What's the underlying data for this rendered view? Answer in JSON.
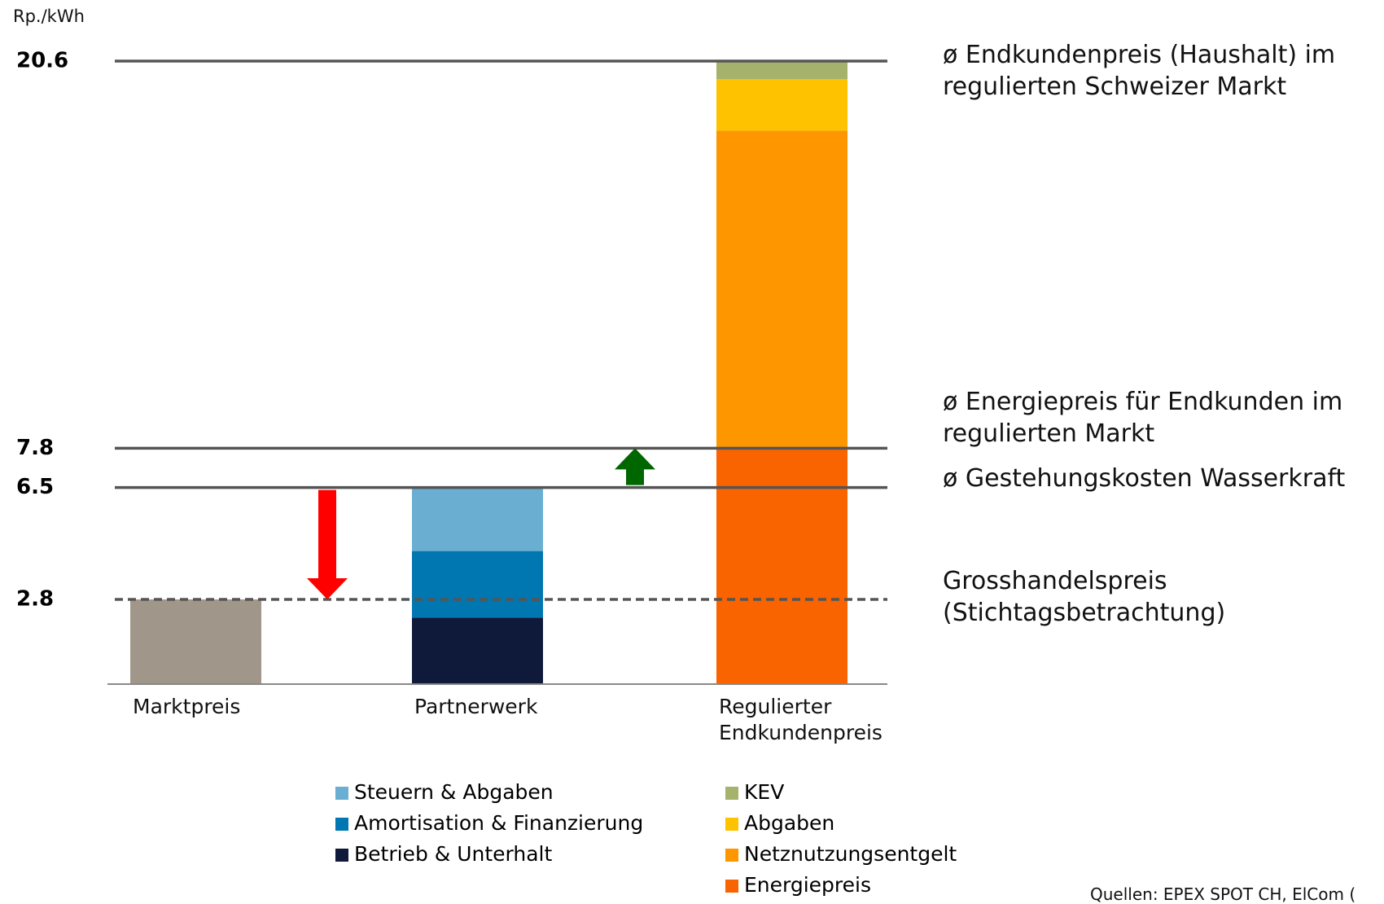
{
  "chart_data": {
    "type": "bar",
    "stacked": true,
    "unit_label": "Rp./kWh",
    "categories": [
      "Marktpreis",
      "Partnerwerk",
      "Regulierter Endkundenpreis"
    ],
    "series": [
      {
        "name": "Marktpreis",
        "color": "#a0968a",
        "values": [
          2.8,
          null,
          null
        ],
        "legend": false
      },
      {
        "name": "Betrieb & Unterhalt",
        "color": "#0f1a3a",
        "values": [
          null,
          2.2,
          null
        ]
      },
      {
        "name": "Amortisation & Finanzierung",
        "color": "#0077b0",
        "values": [
          null,
          2.2,
          null
        ]
      },
      {
        "name": "Steuern & Abgaben",
        "color": "#6aafd2",
        "values": [
          null,
          2.1,
          null
        ]
      },
      {
        "name": "Energiepreis",
        "color": "#f96300",
        "values": [
          null,
          null,
          7.8
        ]
      },
      {
        "name": "Netznutzungsentgelt",
        "color": "#fe9600",
        "values": [
          null,
          null,
          10.5
        ]
      },
      {
        "name": "Abgaben",
        "color": "#fec200",
        "values": [
          null,
          null,
          1.7
        ]
      },
      {
        "name": "KEV",
        "color": "#a5b26b",
        "values": [
          null,
          null,
          0.6
        ]
      }
    ],
    "ylim": [
      0,
      20.6
    ],
    "yticks": [
      2.8,
      6.5,
      7.8,
      20.6
    ],
    "reference_lines": [
      {
        "value": 20.6,
        "dashed": false,
        "label": "ø Endkundenpreis (Haushalt) im regulierten Schweizer Markt"
      },
      {
        "value": 7.8,
        "dashed": false,
        "label": "ø Energiepreis für Endkunden im regulierten Markt"
      },
      {
        "value": 6.5,
        "dashed": false,
        "label": "ø Gestehungskosten Wasserkraft"
      },
      {
        "value": 2.8,
        "dashed": true,
        "label": "Grosshandelspreis (Stichtagsbetrachtung)"
      }
    ],
    "arrows": [
      {
        "from": 6.5,
        "to": 2.8,
        "color": "#ff0000"
      },
      {
        "from": 6.5,
        "to": 7.8,
        "color": "#006600"
      }
    ],
    "source": "Quellen: EPEX SPOT CH, ElCom ("
  }
}
